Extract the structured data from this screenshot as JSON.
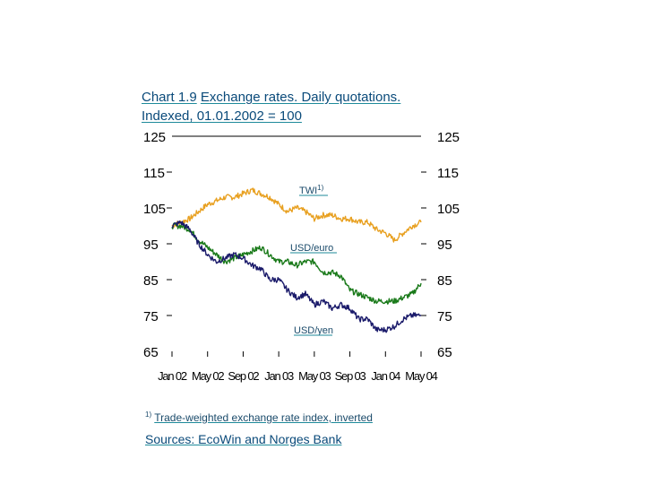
{
  "header": {
    "title_prefix": "Chart 1.9",
    "title_rest": "Exchange rates. Daily quotations. Indexed, 01.01.2002 = 100"
  },
  "footer": {
    "footnote_mark": "1)",
    "footnote_text": "Trade-weighted exchange rate index, inverted",
    "sources": "Sources: EcoWin and Norges Bank"
  },
  "colors": {
    "twi": "#e8a020",
    "usd_euro": "#1a7a1a",
    "usd_yen": "#1a1a6a"
  },
  "chart_data": {
    "type": "line",
    "title": "Exchange rates. Daily quotations. Indexed, 01.01.2002 = 100",
    "ylim": [
      65,
      125
    ],
    "yticks": [
      65,
      75,
      85,
      95,
      105,
      115,
      125
    ],
    "xlim": [
      0,
      28
    ],
    "xticks": [
      0,
      4,
      8,
      12,
      16,
      20,
      24,
      28
    ],
    "xticklabels": [
      "Jan 02",
      "May 02",
      "Sep 02",
      "Jan 03",
      "May 03",
      "Sep 03",
      "Jan 04",
      "May 04"
    ],
    "grid": false,
    "x": [
      0,
      1,
      2,
      3,
      4,
      5,
      6,
      7,
      8,
      9,
      10,
      11,
      12,
      13,
      14,
      15,
      16,
      17,
      18,
      19,
      20,
      21,
      22,
      23,
      24,
      25,
      26,
      27,
      28
    ],
    "series": [
      {
        "name": "TWI1)",
        "label_text": "TWI",
        "label_sup": "1)",
        "values": [
          100,
          101,
          102,
          104,
          106,
          107,
          108,
          108,
          109,
          110,
          109,
          108,
          106,
          104,
          105,
          104,
          102,
          103,
          103,
          102,
          102,
          101,
          101,
          99,
          98,
          96,
          98,
          100,
          101
        ]
      },
      {
        "name": "USD/euro",
        "values": [
          100,
          100,
          99,
          96,
          94,
          92,
          90,
          91,
          92,
          93,
          94,
          92,
          90,
          90,
          89,
          90,
          90,
          87,
          87,
          86,
          82,
          81,
          80,
          79,
          79,
          79,
          80,
          81,
          84
        ]
      },
      {
        "name": "USD/yen",
        "values": [
          100,
          101,
          99,
          95,
          92,
          90,
          91,
          92,
          91,
          89,
          88,
          85,
          85,
          82,
          80,
          81,
          78,
          79,
          77,
          78,
          77,
          74,
          74,
          71,
          71,
          72,
          74,
          75,
          75
        ]
      }
    ]
  }
}
